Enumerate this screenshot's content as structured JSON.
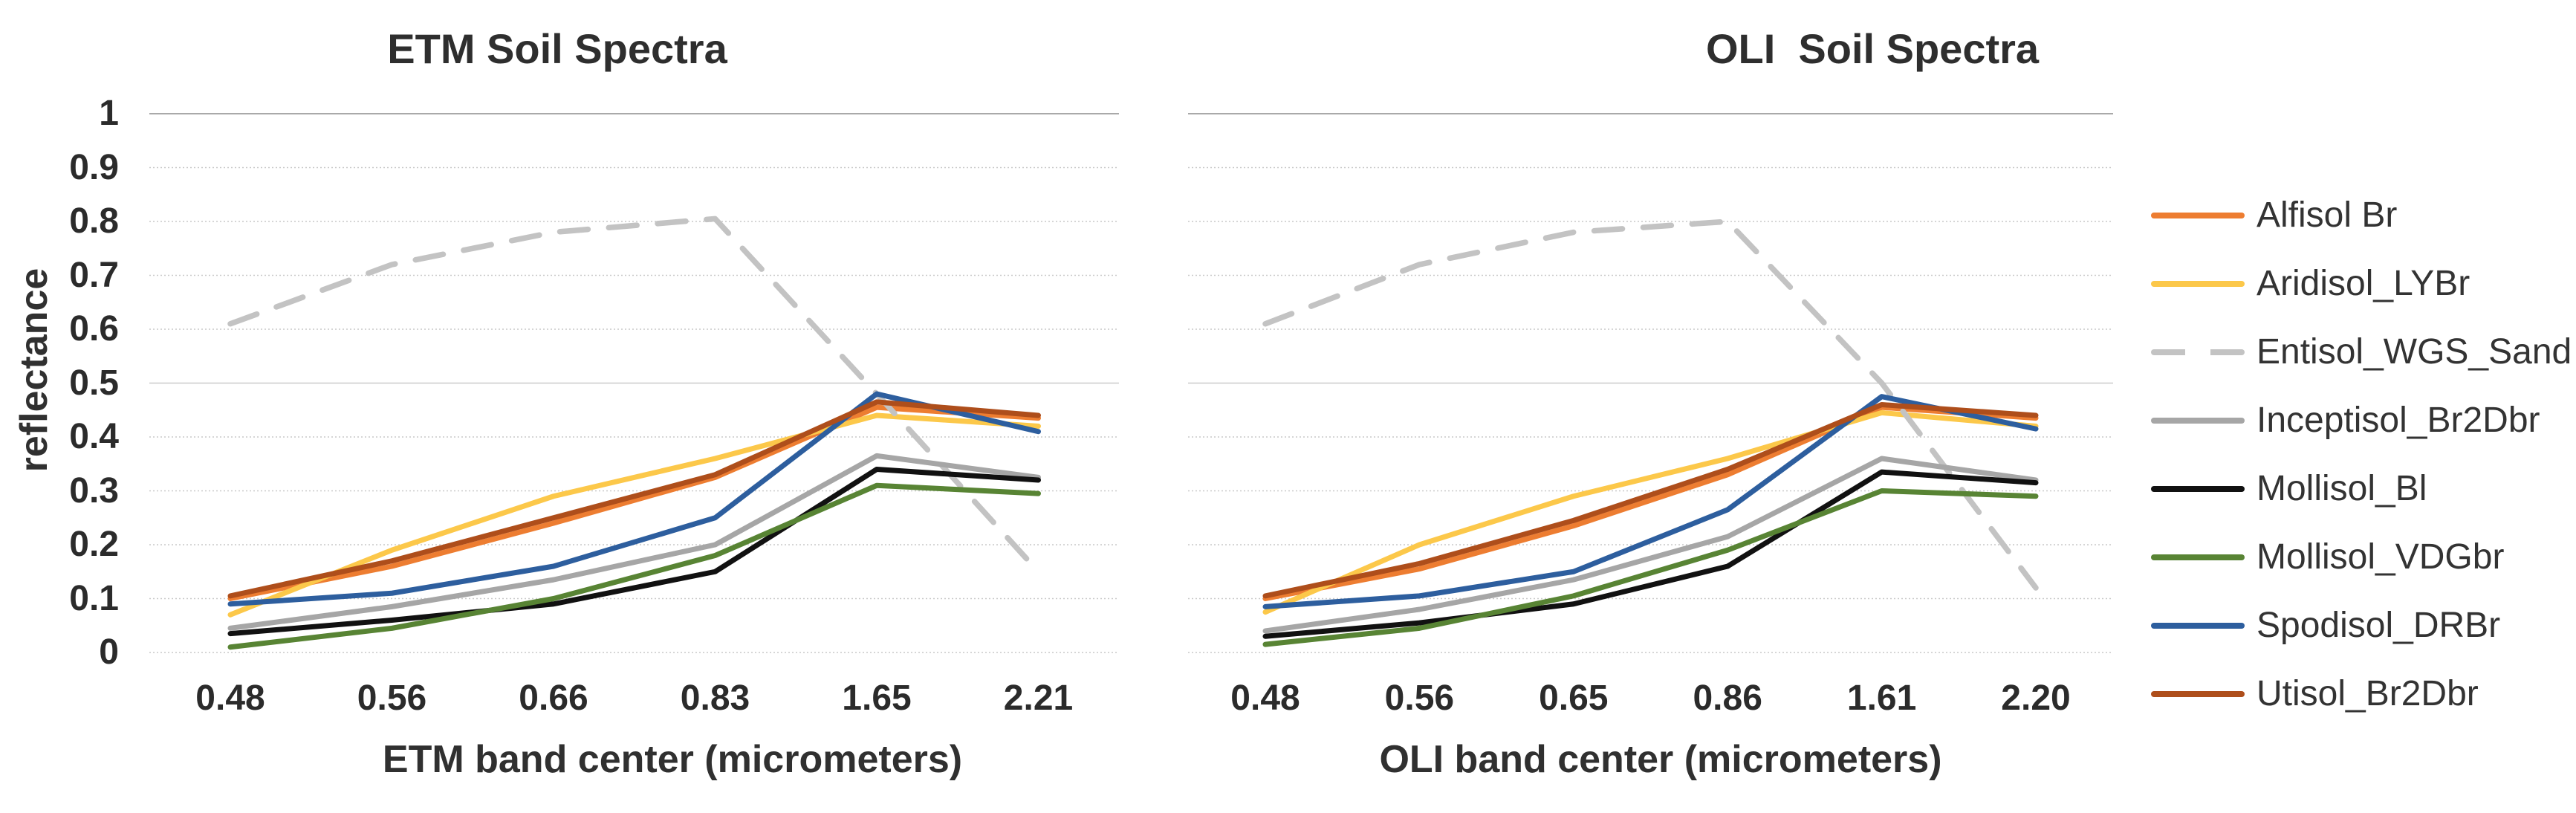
{
  "figure": {
    "background": "#ffffff"
  },
  "chart_data": [
    {
      "type": "line",
      "id": "etm",
      "title": "ETM Soil Spectra",
      "xlabel": "ETM band center (micrometers)",
      "ylabel": "reflectance",
      "ylim": [
        0,
        1
      ],
      "ytick_step": 0.1,
      "grid": true,
      "y_ticks": [
        "1",
        "0.9",
        "0.8",
        "0.7",
        "0.6",
        "0.5",
        "0.4",
        "0.3",
        "0.2",
        "0.1",
        "0"
      ],
      "categories": [
        "0.48",
        "0.56",
        "0.66",
        "0.83",
        "1.65",
        "2.21"
      ],
      "series": [
        {
          "name": "Alfisol Br",
          "color": "#ED7D31",
          "dashed": false,
          "values": [
            0.1,
            0.16,
            0.24,
            0.325,
            0.455,
            0.435
          ]
        },
        {
          "name": "Aridisol_LYBr",
          "color": "#FCC84A",
          "dashed": false,
          "values": [
            0.07,
            0.19,
            0.29,
            0.36,
            0.44,
            0.42
          ]
        },
        {
          "name": "Entisol_WGS_Sand",
          "color": "#C3C3C3",
          "dashed": true,
          "values": [
            0.61,
            0.72,
            0.78,
            0.805,
            0.48,
            0.15
          ]
        },
        {
          "name": "Inceptisol_Br2Dbr",
          "color": "#A6A6A6",
          "dashed": false,
          "values": [
            0.045,
            0.085,
            0.135,
            0.2,
            0.365,
            0.325
          ]
        },
        {
          "name": "Mollisol_Bl",
          "color": "#111111",
          "dashed": false,
          "values": [
            0.035,
            0.06,
            0.09,
            0.15,
            0.34,
            0.32
          ]
        },
        {
          "name": "Mollisol_VDGbr",
          "color": "#588434",
          "dashed": false,
          "values": [
            0.01,
            0.045,
            0.1,
            0.18,
            0.31,
            0.295
          ]
        },
        {
          "name": "Spodisol_DRBr",
          "color": "#2D5E9E",
          "dashed": false,
          "values": [
            0.09,
            0.11,
            0.16,
            0.25,
            0.48,
            0.41
          ]
        },
        {
          "name": "Utisol_Br2Dbr",
          "color": "#AE4E1B",
          "dashed": false,
          "values": [
            0.105,
            0.17,
            0.25,
            0.33,
            0.465,
            0.44
          ]
        }
      ]
    },
    {
      "type": "line",
      "id": "oli",
      "title": "OLI  Soil Spectra",
      "xlabel": "OLI band center (micrometers)",
      "ylabel": "",
      "ylim": [
        0,
        1
      ],
      "ytick_step": 0.1,
      "grid": true,
      "y_ticks": [],
      "categories": [
        "0.48",
        "0.56",
        "0.65",
        "0.86",
        "1.61",
        "2.20"
      ],
      "series": [
        {
          "name": "Alfisol Br",
          "color": "#ED7D31",
          "dashed": false,
          "values": [
            0.1,
            0.155,
            0.235,
            0.33,
            0.455,
            0.435
          ]
        },
        {
          "name": "Aridisol_LYBr",
          "color": "#FCC84A",
          "dashed": false,
          "values": [
            0.075,
            0.2,
            0.29,
            0.36,
            0.445,
            0.42
          ]
        },
        {
          "name": "Entisol_WGS_Sand",
          "color": "#C3C3C3",
          "dashed": true,
          "values": [
            0.61,
            0.72,
            0.78,
            0.8,
            0.5,
            0.12
          ]
        },
        {
          "name": "Inceptisol_Br2Dbr",
          "color": "#A6A6A6",
          "dashed": false,
          "values": [
            0.04,
            0.08,
            0.135,
            0.215,
            0.36,
            0.32
          ]
        },
        {
          "name": "Mollisol_Bl",
          "color": "#111111",
          "dashed": false,
          "values": [
            0.03,
            0.055,
            0.09,
            0.16,
            0.335,
            0.315
          ]
        },
        {
          "name": "Mollisol_VDGbr",
          "color": "#588434",
          "dashed": false,
          "values": [
            0.015,
            0.045,
            0.105,
            0.19,
            0.3,
            0.29
          ]
        },
        {
          "name": "Spodisol_DRBr",
          "color": "#2D5E9E",
          "dashed": false,
          "values": [
            0.085,
            0.105,
            0.15,
            0.265,
            0.475,
            0.415
          ]
        },
        {
          "name": "Utisol_Br2Dbr",
          "color": "#AE4E1B",
          "dashed": false,
          "values": [
            0.105,
            0.165,
            0.245,
            0.34,
            0.46,
            0.44
          ]
        }
      ]
    }
  ],
  "legend": {
    "position": "right",
    "items": [
      {
        "label": "Alfisol Br",
        "color": "#ED7D31",
        "dashed": false
      },
      {
        "label": "Aridisol_LYBr",
        "color": "#FCC84A",
        "dashed": false
      },
      {
        "label": "Entisol_WGS_Sand",
        "color": "#C3C3C3",
        "dashed": true
      },
      {
        "label": "Inceptisol_Br2Dbr",
        "color": "#A6A6A6",
        "dashed": false
      },
      {
        "label": "Mollisol_Bl",
        "color": "#111111",
        "dashed": false
      },
      {
        "label": "Mollisol_VDGbr",
        "color": "#588434",
        "dashed": false
      },
      {
        "label": "Spodisol_DRBr",
        "color": "#2D5E9E",
        "dashed": false
      },
      {
        "label": "Utisol_Br2Dbr",
        "color": "#AE4E1B",
        "dashed": false
      }
    ]
  }
}
